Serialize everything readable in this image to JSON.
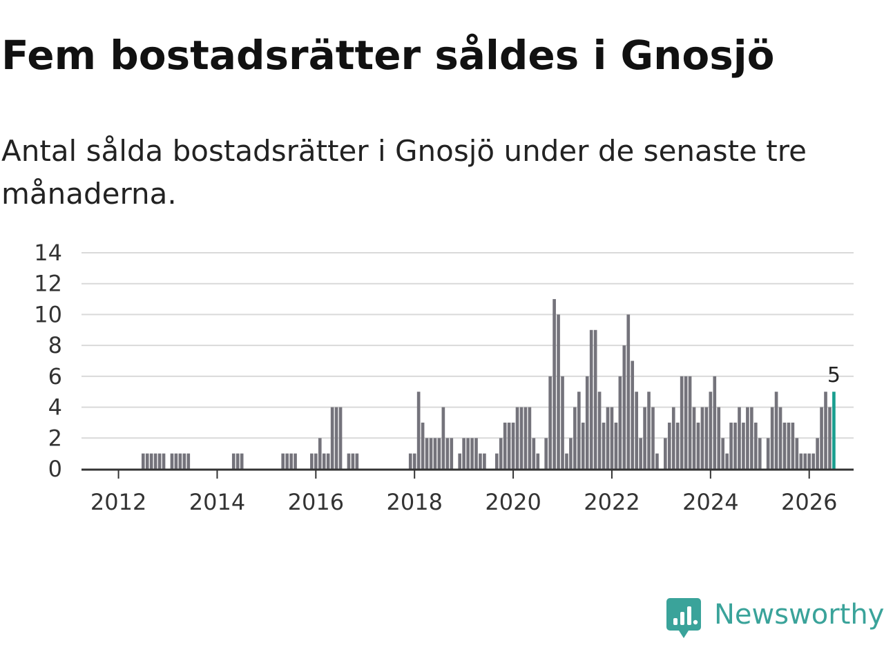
{
  "title": "Fem bostadsrätter såldes i Gnosjö",
  "subtitle": "Antal sålda bostadsrätter i Gnosjö under de senaste tre månaderna.",
  "brand": {
    "name": "Newsworthy",
    "icon": "newsworthy-logo-icon",
    "color": "#3aa39a"
  },
  "chart_data": {
    "type": "bar",
    "title": "Fem bostadsrätter såldes i Gnosjö",
    "subtitle": "Antal sålda bostadsrätter i Gnosjö under de senaste tre månaderna.",
    "xlabel": "",
    "ylabel": "",
    "ylim": [
      0,
      14
    ],
    "xlim": [
      2011.25,
      2026.9
    ],
    "yticks": [
      0,
      2,
      4,
      6,
      8,
      10,
      12,
      14
    ],
    "xticks": [
      2012,
      2014,
      2016,
      2018,
      2020,
      2022,
      2024,
      2026
    ],
    "grid": true,
    "start": "2011-04",
    "bar_color": "#74737b",
    "highlight_color": "#1a9e8f",
    "highlight_label": "5",
    "values": [
      0,
      0,
      0,
      0,
      0,
      0,
      0,
      0,
      0,
      0,
      0,
      0,
      0,
      0,
      0,
      1,
      1,
      1,
      1,
      1,
      1,
      0,
      1,
      1,
      1,
      1,
      1,
      0,
      0,
      0,
      0,
      0,
      0,
      0,
      0,
      0,
      0,
      1,
      1,
      1,
      0,
      0,
      0,
      0,
      0,
      0,
      0,
      0,
      0,
      1,
      1,
      1,
      1,
      0,
      0,
      0,
      1,
      1,
      2,
      1,
      1,
      4,
      4,
      4,
      0,
      1,
      1,
      1,
      0,
      0,
      0,
      0,
      0,
      0,
      0,
      0,
      0,
      0,
      0,
      0,
      1,
      1,
      5,
      3,
      2,
      2,
      2,
      2,
      4,
      2,
      2,
      0,
      1,
      2,
      2,
      2,
      2,
      1,
      1,
      0,
      0,
      1,
      2,
      3,
      3,
      3,
      4,
      4,
      4,
      4,
      2,
      1,
      0,
      2,
      6,
      11,
      10,
      6,
      1,
      2,
      4,
      5,
      3,
      6,
      9,
      9,
      5,
      3,
      4,
      4,
      3,
      6,
      8,
      10,
      7,
      5,
      2,
      4,
      5,
      4,
      1,
      0,
      2,
      3,
      4,
      3,
      6,
      6,
      6,
      4,
      3,
      4,
      4,
      5,
      6,
      4,
      2,
      1,
      3,
      3,
      4,
      3,
      4,
      4,
      3,
      2,
      0,
      2,
      4,
      5,
      4,
      3,
      3,
      3,
      2,
      1,
      1,
      1,
      1,
      2,
      4,
      5,
      4,
      5
    ]
  }
}
